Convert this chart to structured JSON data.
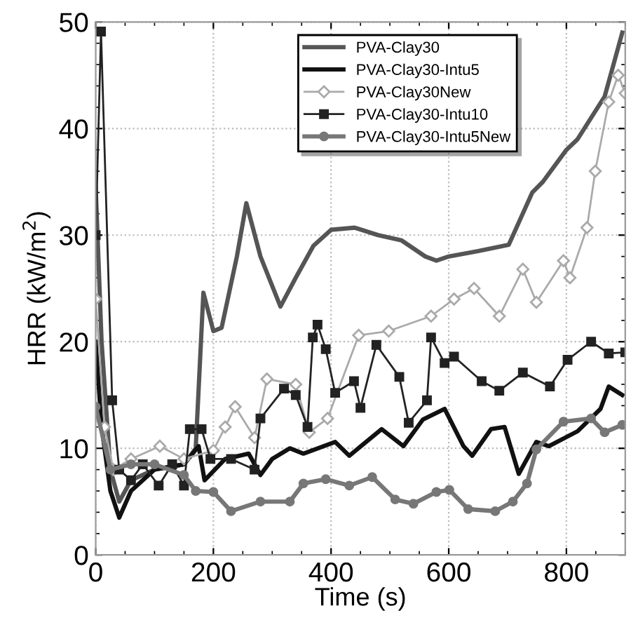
{
  "chart_data": {
    "type": "line",
    "xlabel": "Time (s)",
    "ylabel": "HRR (kW/m$^{2}$)",
    "xlim": [
      0,
      900
    ],
    "ylim": [
      0,
      50
    ],
    "xticks": [
      0,
      200,
      400,
      600,
      800
    ],
    "yticks": [
      0,
      10,
      20,
      30,
      40,
      50
    ],
    "grid": true,
    "legend": "top right",
    "series": [
      {
        "name": "PVA-Clay30",
        "color": "#555555",
        "marker": "none",
        "x": [
          0,
          10,
          25,
          40,
          60,
          100,
          150,
          170,
          183,
          200,
          214,
          240,
          256,
          280,
          314,
          340,
          370,
          400,
          440,
          480,
          520,
          560,
          579,
          600,
          650,
          702,
          742,
          760,
          800,
          819,
          865,
          880,
          895
        ],
        "values": [
          34.5,
          20,
          8,
          5,
          7,
          8,
          8.5,
          10,
          24.6,
          21,
          21.3,
          28,
          33,
          28,
          23.3,
          26,
          29,
          30.5,
          30.7,
          30,
          29.5,
          28,
          27.6,
          28,
          28.5,
          29.1,
          34,
          35,
          38,
          39,
          43,
          46,
          49
        ]
      },
      {
        "name": "PVA-Clay30-Intu5",
        "color": "#111111",
        "marker": "none",
        "x": [
          0,
          10,
          25,
          40,
          60,
          100,
          150,
          175,
          185,
          220,
          260,
          280,
          300,
          330,
          353,
          407,
          431,
          486,
          523,
          556,
          593,
          625,
          640,
          672,
          695,
          719,
          749,
          770,
          819,
          858,
          872,
          895
        ],
        "values": [
          20,
          12,
          6,
          3.5,
          6,
          8,
          8.5,
          10.2,
          7,
          9,
          9.5,
          7.5,
          9,
          10,
          9.5,
          10.6,
          9.3,
          11.8,
          10.2,
          12.7,
          13.7,
          10.2,
          9.3,
          11.8,
          12,
          7.6,
          10.6,
          10.2,
          11.6,
          13.7,
          15.8,
          15
        ]
      },
      {
        "name": "PVA-Clay30New",
        "color": "#aaaaaa",
        "marker": "diamond",
        "x": [
          0,
          15,
          30,
          60,
          109,
          150,
          200,
          220,
          237,
          270,
          291,
          340,
          363,
          394,
          447,
          498,
          570,
          609,
          643,
          686,
          726,
          749,
          795,
          806,
          835,
          849,
          872,
          888,
          900
        ],
        "values": [
          24,
          12,
          8,
          9,
          10.2,
          9,
          9.8,
          12,
          13.9,
          11,
          16.5,
          16,
          11.5,
          12.8,
          20.6,
          21,
          22.4,
          24,
          25,
          22.4,
          26.8,
          23.7,
          27.6,
          26,
          30.7,
          36,
          42.5,
          45,
          43.3
        ]
      },
      {
        "name": "PVA-Clay30-Intu10",
        "color": "#222222",
        "marker": "square",
        "x": [
          0,
          9,
          28,
          40,
          60,
          80,
          107,
          130,
          150,
          160,
          180,
          195,
          230,
          270,
          280,
          320,
          340,
          360,
          369,
          377,
          391,
          407,
          439,
          450,
          477,
          516,
          532,
          563,
          570,
          593,
          609,
          656,
          686,
          726,
          772,
          802,
          842,
          872,
          900
        ],
        "values": [
          30,
          49.1,
          14.5,
          8,
          7,
          8.5,
          6.5,
          8.5,
          6.5,
          11.8,
          11.8,
          9,
          9,
          8,
          12.8,
          15.6,
          15,
          12,
          20.4,
          21.6,
          19.3,
          15.2,
          16.3,
          13.8,
          19.7,
          16.7,
          12.4,
          14.5,
          20.4,
          18,
          18.6,
          16.3,
          15.4,
          17.1,
          15.8,
          18.3,
          20,
          18.9,
          19
        ]
      },
      {
        "name": "PVA-Clay30-Intu5New",
        "color": "#777777",
        "marker": "circle",
        "x": [
          0,
          25,
          60,
          100,
          150,
          170,
          200,
          230,
          280,
          330,
          353,
          391,
          431,
          470,
          509,
          540,
          579,
          601,
          633,
          679,
          709,
          733,
          749,
          795,
          842,
          865,
          895
        ],
        "values": [
          13.9,
          8,
          8.5,
          8.5,
          7.5,
          6,
          5.9,
          4.1,
          5,
          5,
          6.7,
          7.1,
          6.5,
          7.3,
          5.2,
          4.8,
          5.9,
          6.1,
          4.3,
          4.1,
          5,
          6.7,
          9.9,
          12.5,
          12.8,
          11.5,
          12.2
        ]
      }
    ]
  }
}
